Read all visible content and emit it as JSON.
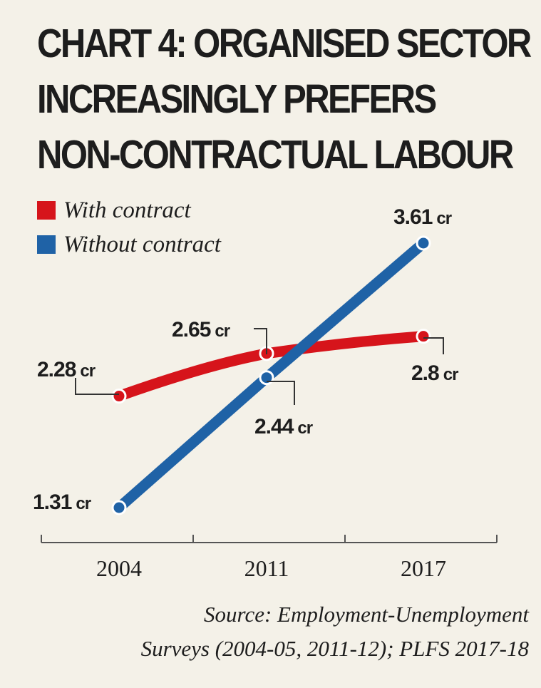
{
  "title_lines": [
    "CHART 4: ORGANISED SECTOR",
    "INCREASINGLY PREFERS",
    "NON-CONTRACTUAL LABOUR"
  ],
  "source_lines": [
    "Source: Employment-Unemployment",
    "Surveys (2004-05, 2011-12); PLFS 2017-18"
  ],
  "colors": {
    "with_contract": "#d6141b",
    "without_contract": "#1f62a6",
    "axis": "#555555",
    "background": "#f4f1e8"
  },
  "chart_data": {
    "type": "line",
    "title": "CHART 4: ORGANISED SECTOR INCREASINGLY PREFERS NON-CONTRACTUAL LABOUR",
    "x": [
      "2004",
      "2011",
      "2017"
    ],
    "unit": "cr",
    "ylim": [
      1.0,
      3.8
    ],
    "grid": false,
    "legend_position": "top-left",
    "series": [
      {
        "name": "With contract",
        "color": "#d6141b",
        "values": [
          2.28,
          2.65,
          2.8
        ],
        "labels": [
          "2.28",
          "2.65",
          "2.8"
        ]
      },
      {
        "name": "Without contract",
        "color": "#1f62a6",
        "values": [
          1.31,
          2.44,
          3.61
        ],
        "labels": [
          "1.31",
          "2.44",
          "3.61"
        ]
      }
    ]
  }
}
